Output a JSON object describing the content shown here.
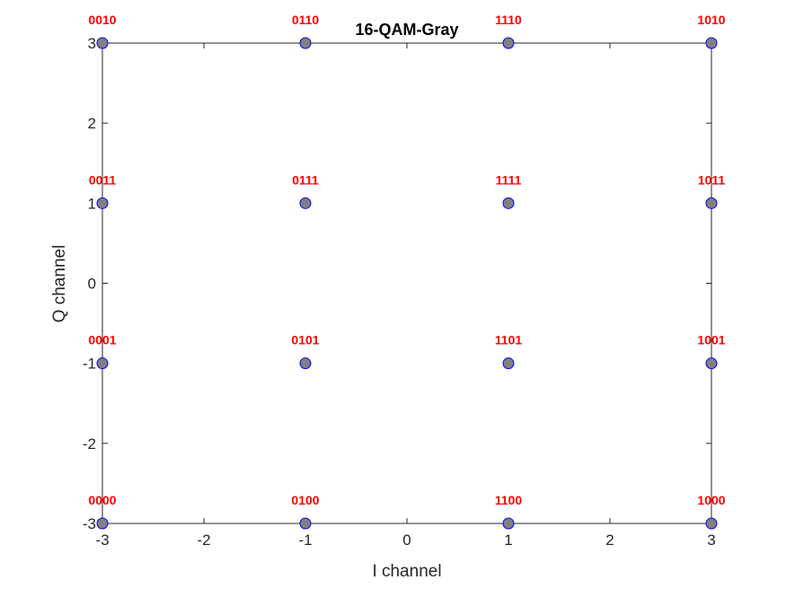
{
  "chart_data": {
    "type": "scatter",
    "title": "16-QAM-Gray",
    "xlabel": "I channel",
    "ylabel": "Q channel",
    "xlim": [
      -3,
      3
    ],
    "ylim": [
      -3,
      3
    ],
    "xticks": [
      -3,
      -2,
      -1,
      0,
      1,
      2,
      3
    ],
    "yticks": [
      -3,
      -2,
      -1,
      0,
      1,
      2,
      3
    ],
    "grid": false,
    "points": [
      {
        "x": -3,
        "y": 3,
        "label": "0010"
      },
      {
        "x": -1,
        "y": 3,
        "label": "0110"
      },
      {
        "x": 1,
        "y": 3,
        "label": "1110"
      },
      {
        "x": 3,
        "y": 3,
        "label": "1010"
      },
      {
        "x": -3,
        "y": 1,
        "label": "0011"
      },
      {
        "x": -1,
        "y": 1,
        "label": "0111"
      },
      {
        "x": 1,
        "y": 1,
        "label": "1111"
      },
      {
        "x": 3,
        "y": 1,
        "label": "1011"
      },
      {
        "x": -3,
        "y": -1,
        "label": "0001"
      },
      {
        "x": -1,
        "y": -1,
        "label": "0101"
      },
      {
        "x": 1,
        "y": -1,
        "label": "1101"
      },
      {
        "x": 3,
        "y": -1,
        "label": "1001"
      },
      {
        "x": -3,
        "y": -3,
        "label": "0000"
      },
      {
        "x": -1,
        "y": -3,
        "label": "0100"
      },
      {
        "x": 1,
        "y": -3,
        "label": "1100"
      },
      {
        "x": 3,
        "y": -3,
        "label": "1000"
      }
    ],
    "colors": {
      "marker_fill": "#808080",
      "marker_edge": "#0000ff",
      "label": "#ff0000",
      "axis": "#262626"
    }
  }
}
